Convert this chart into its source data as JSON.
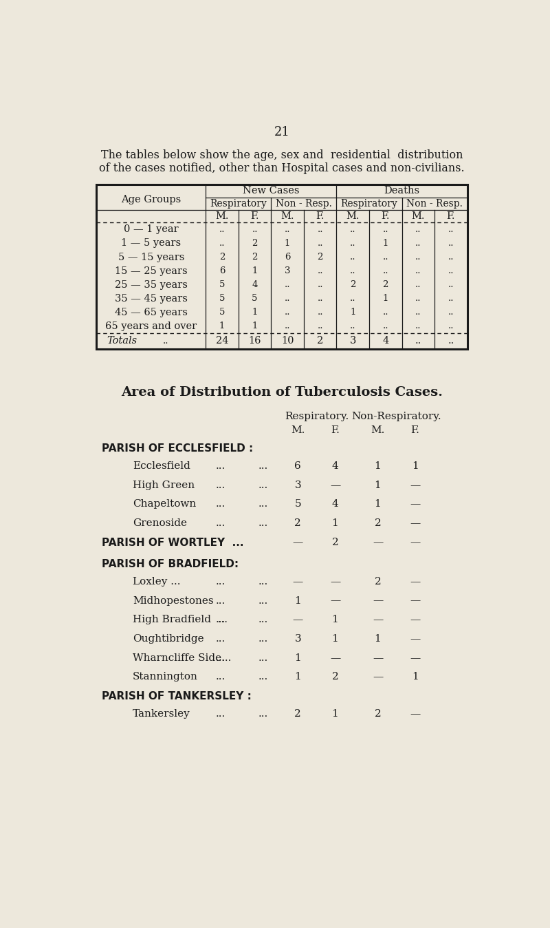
{
  "page_number": "21",
  "intro_text_line1": "The tables below show the age, sex and  residential  distribution",
  "intro_text_line2": "of the cases notified, other than Hospital cases and non-civilians.",
  "bg_color": "#ede8dc",
  "text_color": "#1a1a1a",
  "table1": {
    "rows": [
      [
        "0 — 1 year",
        "..",
        "..",
        "..",
        "..",
        "..",
        "..",
        "..",
        ".."
      ],
      [
        "1 — 5 years",
        "..",
        "2",
        "1",
        "..",
        "..",
        "1",
        "..",
        ".."
      ],
      [
        "5 — 15 years",
        "2",
        "2",
        "6",
        "2",
        "..",
        "..",
        "..",
        ".."
      ],
      [
        "15 — 25 years",
        "6",
        "1",
        "3",
        "..",
        "..",
        "..",
        "..",
        ".."
      ],
      [
        "25 — 35 years",
        "5",
        "4",
        "..",
        "..",
        "2",
        "2",
        "..",
        ".."
      ],
      [
        "35 — 45 years",
        "5",
        "5",
        "..",
        "..",
        "..",
        "1",
        "..",
        ".."
      ],
      [
        "45 — 65 years",
        "5",
        "1",
        "..",
        "..",
        "1",
        "..",
        "..",
        ".."
      ],
      [
        "65 years and over",
        "1",
        "1",
        "..",
        "..",
        "..",
        "..",
        "..",
        ".."
      ]
    ],
    "totals_values": [
      "24",
      "16",
      "10",
      "2",
      "3",
      "4",
      "..",
      ".."
    ]
  },
  "table2_title": "Area of Distribution of Tuberculosis Cases.",
  "table2_rows": [
    {
      "type": "section",
      "label": "PARISH OF ECCLESFIELD :",
      "values": [
        "",
        "",
        "",
        ""
      ]
    },
    {
      "type": "data",
      "label": "Ecclesfield",
      "values": [
        "6",
        "4",
        "1",
        "1"
      ]
    },
    {
      "type": "data",
      "label": "High Green",
      "values": [
        "3",
        "—",
        "1",
        "—"
      ]
    },
    {
      "type": "data",
      "label": "Chapeltown",
      "values": [
        "5",
        "4",
        "1",
        "—"
      ]
    },
    {
      "type": "data",
      "label": "Grenoside",
      "values": [
        "2",
        "1",
        "2",
        "—"
      ]
    },
    {
      "type": "section_vals",
      "label": "PARISH OF WORTLEY  ...",
      "values": [
        "—",
        "2",
        "—",
        "—"
      ]
    },
    {
      "type": "section",
      "label": "PARISH OF BRADFIELD:",
      "values": [
        "",
        "",
        "",
        ""
      ]
    },
    {
      "type": "data",
      "label": "Loxley ...",
      "values": [
        "—",
        "—",
        "2",
        "—"
      ]
    },
    {
      "type": "data",
      "label": "Midhopestones",
      "values": [
        "1",
        "—",
        "—",
        "—"
      ]
    },
    {
      "type": "data",
      "label": "High Bradfield  ...",
      "values": [
        "—",
        "1",
        "—",
        "—"
      ]
    },
    {
      "type": "data",
      "label": "Oughtibridge",
      "values": [
        "3",
        "1",
        "1",
        "—"
      ]
    },
    {
      "type": "data",
      "label": "Wharncliffe Side...",
      "values": [
        "1",
        "—",
        "—",
        "—"
      ]
    },
    {
      "type": "data",
      "label": "Stannington",
      "values": [
        "1",
        "2",
        "—",
        "1"
      ]
    },
    {
      "type": "section",
      "label": "PARISH OF TANKERSLEY :",
      "values": [
        "",
        "",
        "",
        ""
      ]
    },
    {
      "type": "data",
      "label": "Tankersley",
      "values": [
        "2",
        "1",
        "2",
        "—"
      ]
    }
  ]
}
